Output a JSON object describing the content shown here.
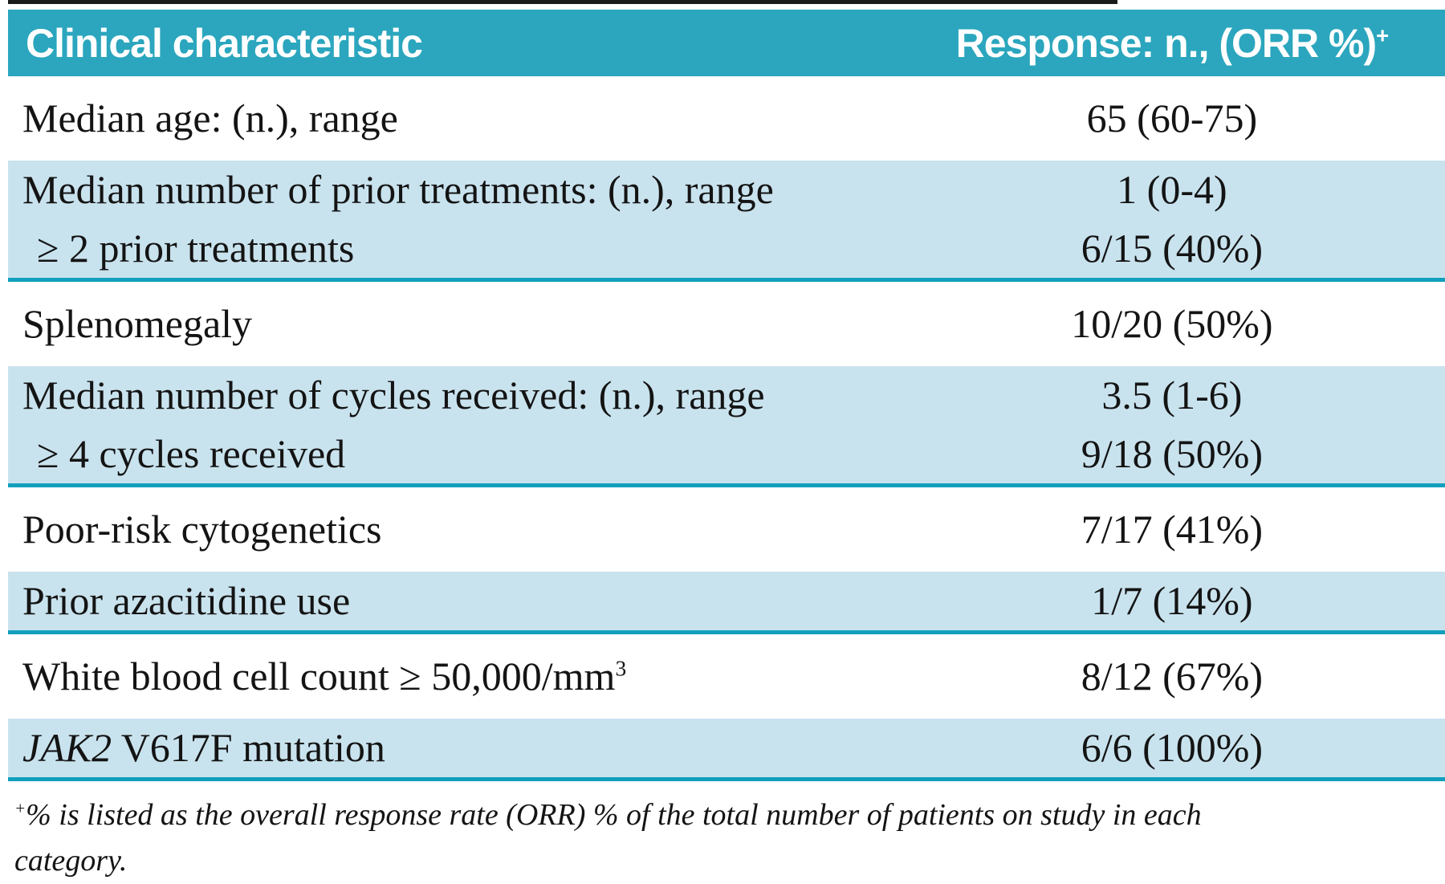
{
  "colors": {
    "header_bg": "#2ba6be",
    "shade_bg": "#c9e3ee",
    "rule": "#129fbc",
    "text": "#141414",
    "header_text": "#ffffff"
  },
  "table": {
    "header": {
      "col1": "Clinical characteristic",
      "col2": "Response: n., (ORR %)",
      "col2_sup": "+"
    },
    "rows": [
      {
        "shaded": false,
        "lines": [
          {
            "label": "Median age: (n.), range",
            "value": "65 (60-75)"
          }
        ]
      },
      {
        "shaded": true,
        "lines": [
          {
            "label": "Median number of prior treatments: (n.), range",
            "value": "1 (0-4)"
          },
          {
            "label": "≥ 2 prior treatments",
            "value": "6/15 (40%)",
            "indent": true
          }
        ]
      },
      {
        "shaded": false,
        "lines": [
          {
            "label": "Splenomegaly",
            "value": "10/20 (50%)"
          }
        ]
      },
      {
        "shaded": true,
        "lines": [
          {
            "label": "Median number of cycles received: (n.), range",
            "value": "3.5 (1-6)"
          },
          {
            "label": "≥ 4 cycles received",
            "value": "9/18 (50%)",
            "indent": true
          }
        ]
      },
      {
        "shaded": false,
        "lines": [
          {
            "label": "Poor-risk cytogenetics",
            "value": "7/17 (41%)"
          }
        ]
      },
      {
        "shaded": true,
        "lines": [
          {
            "label": "Prior azacitidine use",
            "value": "1/7 (14%)"
          }
        ]
      },
      {
        "shaded": false,
        "lines": [
          {
            "label": "White blood cell count ≥ 50,000/mm",
            "label_sup": "3",
            "value": "8/12 (67%)"
          }
        ]
      },
      {
        "shaded": true,
        "lines": [
          {
            "italic_prefix": "JAK2",
            "label": " V617F mutation",
            "value": "6/6 (100%)"
          }
        ]
      }
    ],
    "footnote": {
      "sup": "+",
      "text": "% is listed as the overall response rate (ORR) % of the total number of patients on study in each category."
    }
  }
}
